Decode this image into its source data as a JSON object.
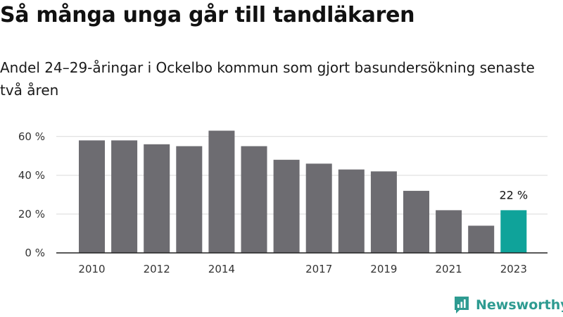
{
  "chart_data": {
    "type": "bar",
    "title": "Så många unga går till tandläkaren",
    "subtitle": "Andel 24–29-åringar i Ockelbo kommun som gjort basundersökning senaste två åren",
    "x": [
      2010,
      2011,
      2012,
      2013,
      2014,
      2015,
      2016,
      2017,
      2018,
      2019,
      2020,
      2021,
      2022,
      2023
    ],
    "x_tick_labels": [
      "2010",
      "2012",
      "2014",
      "2017",
      "2019",
      "2021",
      "2023"
    ],
    "values": [
      58,
      58,
      56,
      55,
      63,
      55,
      48,
      46,
      43,
      42,
      32,
      22,
      14,
      22
    ],
    "y_ticks": [
      0,
      20,
      40,
      60
    ],
    "y_tick_labels": [
      "0 %",
      "20 %",
      "40 %",
      "60 %"
    ],
    "ylim": [
      0,
      65
    ],
    "grid": true,
    "bar_color": "#6d6c71",
    "highlight_color": "#0fa39a",
    "highlight_index": 13,
    "annotation": {
      "index": 13,
      "text": "22 %"
    }
  },
  "branding": {
    "name": "Newsworthy",
    "icon": "newsworthy-logo-icon",
    "color": "#2e9b91"
  }
}
